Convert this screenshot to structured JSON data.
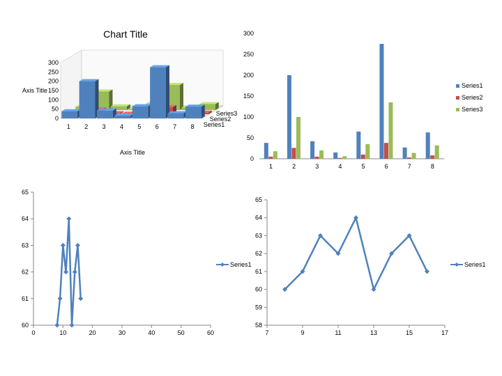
{
  "chart_data": [
    {
      "type": "bar",
      "subtype": "3d-column",
      "title": "Chart Title",
      "xlabel": "Axis Title",
      "ylabel": "Axis Title",
      "ylim": [
        0,
        300
      ],
      "yticks": [
        "0",
        "50",
        "100",
        "150",
        "200",
        "250",
        "300"
      ],
      "categories": [
        "1",
        "2",
        "3",
        "4",
        "5",
        "6",
        "7",
        "8"
      ],
      "series": [
        {
          "name": "Series1",
          "color": "#4F81BD",
          "values": [
            38,
            200,
            42,
            15,
            65,
            275,
            27,
            63
          ]
        },
        {
          "name": "Series2",
          "color": "#C0504D",
          "values": [
            5,
            26,
            5,
            2,
            10,
            38,
            3,
            8
          ]
        },
        {
          "name": "Series3",
          "color": "#9BBB59",
          "values": [
            18,
            100,
            20,
            6,
            35,
            135,
            14,
            32
          ]
        }
      ],
      "depth_labels": [
        "Series3",
        "Series2",
        "Series1"
      ]
    },
    {
      "type": "bar",
      "categories": [
        "1",
        "2",
        "3",
        "4",
        "5",
        "6",
        "7",
        "8"
      ],
      "ylim": [
        0,
        300
      ],
      "yticks": [
        "0",
        "50",
        "100",
        "150",
        "200",
        "250",
        "300"
      ],
      "legend": "right",
      "series": [
        {
          "name": "Series1",
          "color": "#4F81BD",
          "values": [
            38,
            200,
            42,
            15,
            65,
            275,
            27,
            63
          ]
        },
        {
          "name": "Series2",
          "color": "#C0504D",
          "values": [
            5,
            26,
            5,
            2,
            10,
            38,
            3,
            8
          ]
        },
        {
          "name": "Series3",
          "color": "#9BBB59",
          "values": [
            18,
            100,
            20,
            6,
            35,
            135,
            14,
            32
          ]
        }
      ]
    },
    {
      "type": "scatter",
      "lines": true,
      "xlim": [
        0,
        60
      ],
      "ylim": [
        60,
        65
      ],
      "xticks": [
        "0",
        "10",
        "20",
        "30",
        "40",
        "50",
        "60"
      ],
      "yticks": [
        "60",
        "61",
        "62",
        "63",
        "64",
        "65"
      ],
      "legend": "right",
      "series": [
        {
          "name": "Series1",
          "color": "#4F81BD",
          "x": [
            8,
            9,
            10,
            11,
            12,
            13,
            14,
            15,
            16
          ],
          "y": [
            60,
            61,
            63,
            62,
            64,
            60,
            62,
            63,
            61
          ]
        }
      ]
    },
    {
      "type": "scatter",
      "lines": true,
      "xlim": [
        7,
        17
      ],
      "ylim": [
        58,
        65
      ],
      "xticks": [
        "7",
        "9",
        "11",
        "13",
        "15",
        "17"
      ],
      "yticks": [
        "58",
        "59",
        "60",
        "61",
        "62",
        "63",
        "64",
        "65"
      ],
      "legend": "right",
      "series": [
        {
          "name": "Series1",
          "color": "#4F81BD",
          "x": [
            8,
            9,
            10,
            11,
            12,
            13,
            14,
            15,
            16
          ],
          "y": [
            60,
            61,
            63,
            62,
            64,
            60,
            62,
            63,
            61
          ]
        }
      ]
    }
  ]
}
